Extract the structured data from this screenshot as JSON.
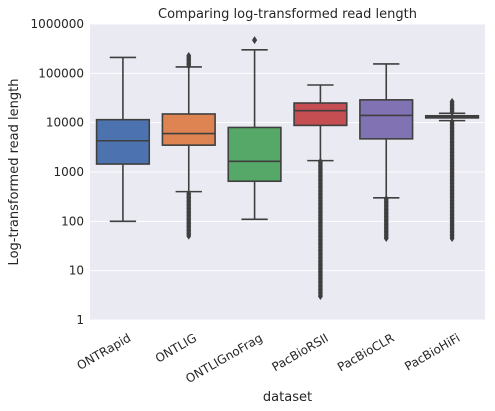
{
  "chart_data": {
    "type": "boxplot",
    "title": "Comparing log-transformed read length",
    "xlabel": "dataset",
    "ylabel": "Log-transformed read length",
    "yscale": "log",
    "ylim": [
      1,
      1000000
    ],
    "yticks": [
      1,
      10,
      100,
      1000,
      10000,
      100000,
      1000000
    ],
    "ytick_labels": [
      "1",
      "10",
      "100",
      "1000",
      "10000",
      "100000",
      "1000000"
    ],
    "grid": true,
    "categories": [
      "ONTRapid",
      "ONTLIG",
      "ONTLIGnoFrag",
      "PacBioRSII",
      "PacBioCLR",
      "PacBioHiFi"
    ],
    "colors": [
      "#4c72b0",
      "#dd8452",
      "#55a868",
      "#c44e52",
      "#8172b3",
      "#937860"
    ],
    "background_color": "#eaeaf2",
    "boxes": [
      {
        "whislo": 100,
        "q1": 1450,
        "median": 4300,
        "q3": 11500,
        "whishi": 210000,
        "fliers_low": [],
        "fliers_high": []
      },
      {
        "whislo": 400,
        "q1": 3500,
        "median": 6000,
        "q3": 15000,
        "whishi": 135000,
        "fliers_low": [
          50,
          370
        ],
        "fliers_high": [
          140000,
          230000
        ]
      },
      {
        "whislo": 110,
        "q1": 650,
        "median": 1650,
        "q3": 8000,
        "whishi": 300000,
        "fliers_low": [],
        "fliers_high": [
          470000
        ]
      },
      {
        "whislo": 1700,
        "q1": 8800,
        "median": 17500,
        "q3": 25000,
        "whishi": 58000,
        "fliers_low": [
          3,
          1650
        ],
        "fliers_high": []
      },
      {
        "whislo": 300,
        "q1": 4700,
        "median": 14000,
        "q3": 29000,
        "whishi": 155000,
        "fliers_low": [
          45,
          290
        ],
        "fliers_high": []
      },
      {
        "whislo": 11000,
        "q1": 12500,
        "median": 13000,
        "q3": 13800,
        "whishi": 15500,
        "fliers_low": [
          45,
          10500
        ],
        "fliers_high": [
          16000,
          27000
        ]
      }
    ]
  }
}
